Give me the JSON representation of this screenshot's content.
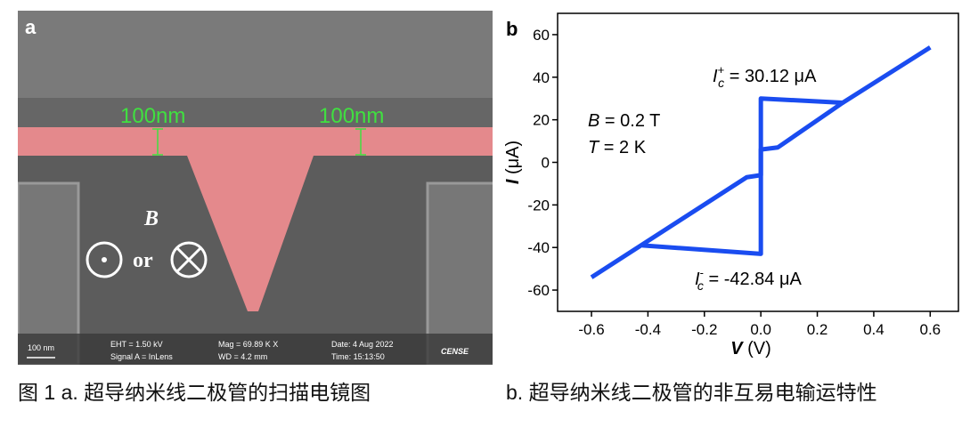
{
  "panel_a": {
    "label": "a",
    "scale_marks": [
      "100nm",
      "100nm"
    ],
    "field_symbol": "B",
    "field_or": "or",
    "info": [
      "100 nm",
      "EHT = 1.50 kV",
      "Signal A = InLens",
      "Mag =  69.89 K X",
      "WD = 4.2 mm",
      "Date: 4 Aug 2022",
      "Time: 15:13:50",
      "CENSE"
    ]
  },
  "chart_data": {
    "type": "line",
    "label": "b",
    "x_label": {
      "symbol": "V",
      "unit": " (V)"
    },
    "y_label": {
      "symbol": "I",
      "unit": " (μA)"
    },
    "xlim": [
      -0.72,
      0.7
    ],
    "ylim": [
      -70,
      70
    ],
    "xticks": [
      -0.6,
      -0.4,
      -0.2,
      {
        "value": 0,
        "label": "0.0"
      },
      0.2,
      0.4,
      0.6
    ],
    "yticks": [
      -60,
      -40,
      -20,
      0,
      20,
      40,
      60
    ],
    "series": [
      {
        "color": "#1a4cf0",
        "x": [
          -0.6,
          -0.05,
          0,
          0,
          0.29,
          0.6
        ],
        "values": [
          -54,
          -7,
          -6,
          30,
          28,
          54
        ]
      },
      {
        "color": "#1a4cf0",
        "x": [
          0.29,
          0.06,
          0,
          0,
          -0.42
        ],
        "values": [
          28,
          7,
          6,
          -43,
          -39
        ]
      }
    ],
    "annotations": [
      {
        "symbol": "B",
        "text": " = 0.2 T"
      },
      {
        "symbol": "T",
        "text": " = 2 K"
      },
      {
        "symbol": "I",
        "sub": "c",
        "sup": "+",
        "text": " = 30.12 μA"
      },
      {
        "symbol": "I",
        "sub": "c",
        "sup": "-",
        "text": " = -42.84 μA"
      }
    ]
  },
  "caption": {
    "a": "图 1 a. 超导纳米线二极管的扫描电镜图",
    "b": "b. 超导纳米线二极管的非互易电输运特性"
  }
}
